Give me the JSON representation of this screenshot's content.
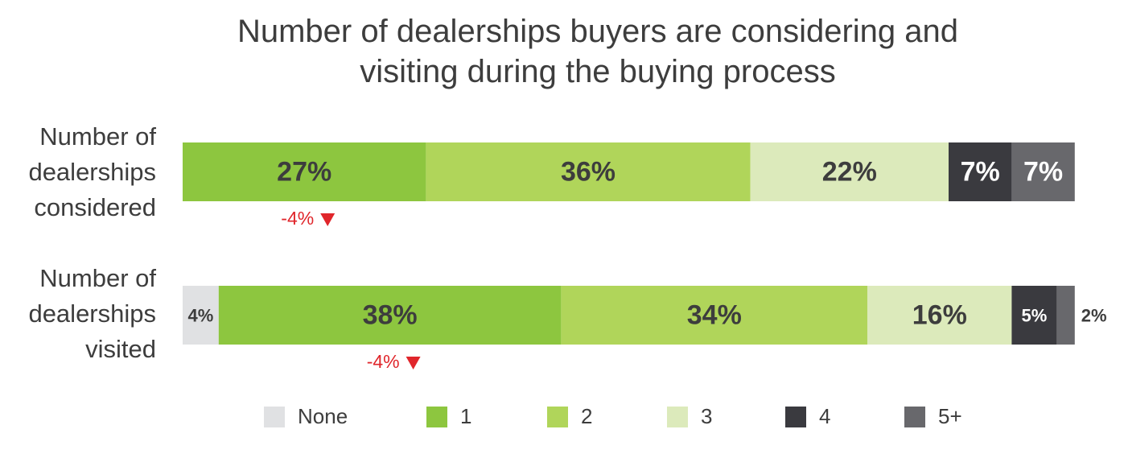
{
  "chart_data": {
    "type": "stacked-bar-horizontal",
    "title": "Number of dealerships buyers are considering and visiting during the buying process",
    "categories": [
      "Number of dealerships considered",
      "Number of dealerships visited"
    ],
    "xlim": [
      0,
      100
    ],
    "series": [
      {
        "name": "None",
        "color": "#e0e1e3",
        "values": [
          null,
          4
        ],
        "value_labels": [
          null,
          "4%"
        ]
      },
      {
        "name": "1",
        "color": "#8dc63f",
        "values": [
          27,
          38
        ],
        "value_labels": [
          "27%",
          "38%"
        ],
        "change_values": [
          -4,
          -4
        ],
        "change_labels": [
          "-4%",
          "-4%"
        ]
      },
      {
        "name": "2",
        "color": "#b0d55a",
        "values": [
          36,
          34
        ],
        "value_labels": [
          "36%",
          "34%"
        ]
      },
      {
        "name": "3",
        "color": "#dceabb",
        "values": [
          22,
          16
        ],
        "value_labels": [
          "22%",
          "16%"
        ]
      },
      {
        "name": "4",
        "color": "#3a3a3f",
        "values": [
          7,
          5
        ],
        "value_labels": [
          "7%",
          "5%"
        ]
      },
      {
        "name": "5+",
        "color": "#68686c",
        "values": [
          7,
          2
        ],
        "value_labels": [
          "7%",
          "2%"
        ]
      }
    ],
    "legend": "bottom"
  }
}
